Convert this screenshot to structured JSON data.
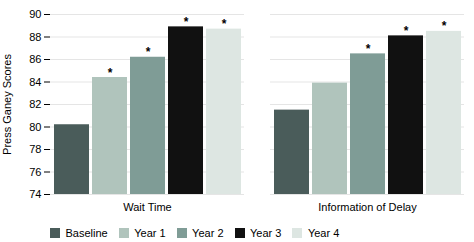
{
  "chart_data": {
    "type": "bar",
    "categories": [
      "Wait Time",
      "Information of Delay"
    ],
    "series": [
      {
        "name": "Baseline",
        "color": "#4a5c5a",
        "values": [
          80.2,
          81.5
        ]
      },
      {
        "name": "Year 1",
        "color": "#b0c4bc",
        "values": [
          84.4,
          83.9
        ]
      },
      {
        "name": "Year 2",
        "color": "#7f9c96",
        "values": [
          86.2,
          86.5
        ]
      },
      {
        "name": "Year 3",
        "color": "#111111",
        "values": [
          88.9,
          88.1
        ]
      },
      {
        "name": "Year 4",
        "color": "#dde6e2",
        "values": [
          88.7,
          88.5
        ]
      }
    ],
    "annotations": [
      {
        "x": "Wait Time",
        "series": "Year 1",
        "text": "*"
      },
      {
        "x": "Wait Time",
        "series": "Year 2",
        "text": "*"
      },
      {
        "x": "Wait Time",
        "series": "Year 3",
        "text": "*"
      },
      {
        "x": "Wait Time",
        "series": "Year 4",
        "text": "*"
      },
      {
        "x": "Information of Delay",
        "series": "Year 2",
        "text": "*"
      },
      {
        "x": "Information of Delay",
        "series": "Year 3",
        "text": "*"
      },
      {
        "x": "Information of Delay",
        "series": "Year 4",
        "text": "*"
      }
    ],
    "ylabel": "Press Ganey Scores",
    "ylim": [
      74,
      90
    ],
    "yticks": [
      74,
      76,
      78,
      80,
      82,
      84,
      86,
      88,
      90
    ],
    "grid": true,
    "legend": "bottom"
  }
}
